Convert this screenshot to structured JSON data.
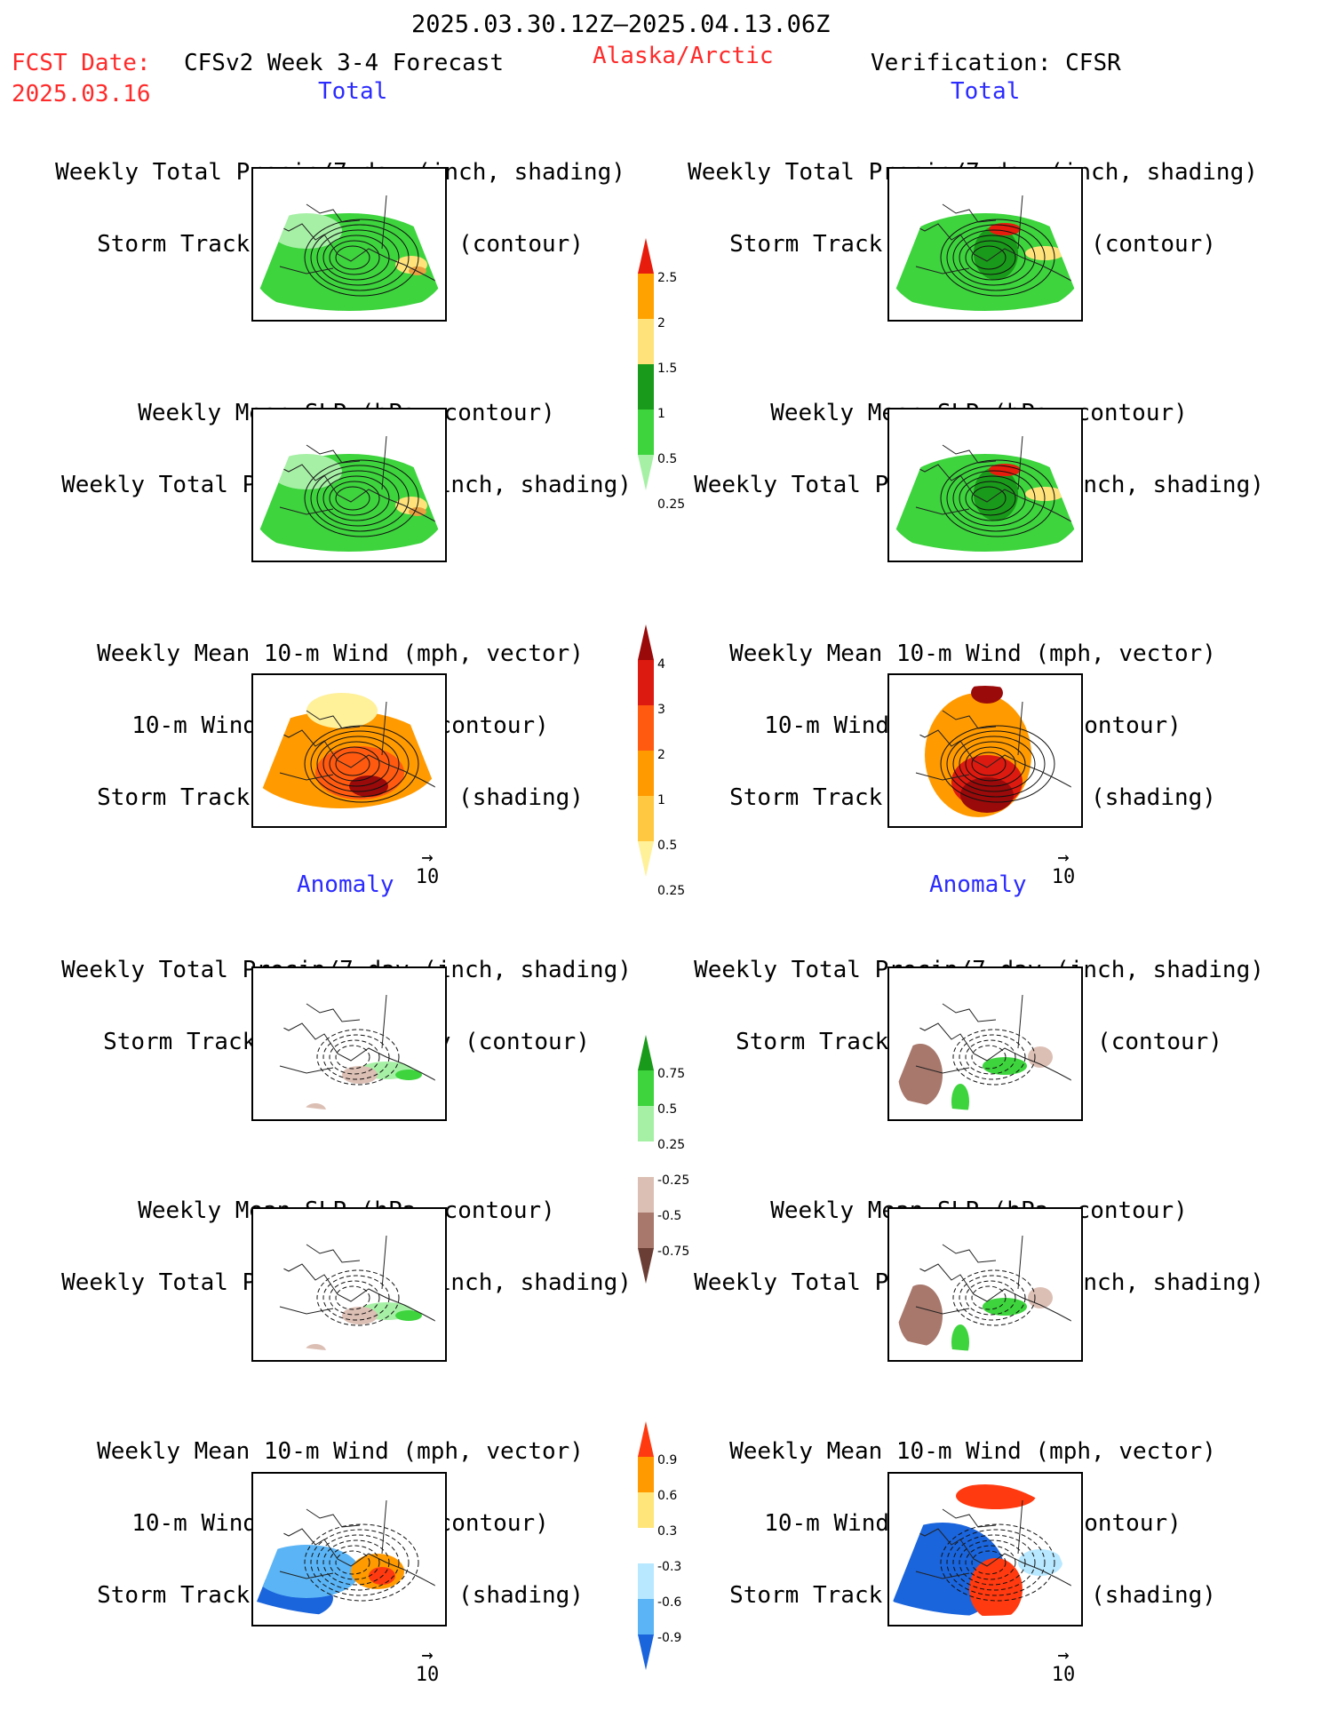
{
  "header": {
    "period": "2025.03.30.12Z–2025.04.13.06Z",
    "fcst_label": "FCST Date:",
    "fcst_date": "2025.03.16",
    "model": "CFSv2 Week 3-4 Forecast",
    "region": "Alaska/Arctic",
    "verification": "Verification: CFSR"
  },
  "sections": {
    "total_left": "Total",
    "total_right": "Total",
    "anomaly_left": "Anomaly",
    "anomaly_right": "Anomaly"
  },
  "titles": {
    "precip_storm": [
      "Weekly Total Precip/7-day (inch, shading)",
      "Storm Track Density/7-day (contour)"
    ],
    "slp_precip": [
      "Weekly Mean SLP (hPa, contour)",
      "Weekly Total Precip/7-day (inch, shading)"
    ],
    "wind": [
      "Weekly Mean 10-m Wind (mph, vector)",
      "10-m Wind Speed (mph, contour)",
      "Storm Track Density/7-day (shading)"
    ]
  },
  "vector_ref": "10",
  "colorbars": {
    "precip_total": {
      "labels": [
        "2.5",
        "2",
        "1.5",
        "1",
        "0.5",
        "0.25"
      ],
      "colors": [
        "#e81c0c",
        "#ffa200",
        "#ffe37a",
        "#1a9a1a",
        "#3dd43d",
        "#a6f0a6"
      ]
    },
    "storm_total": {
      "labels": [
        "4",
        "3",
        "2",
        "1",
        "0.5",
        "0.25"
      ],
      "colors": [
        "#9a0a0a",
        "#dd1a10",
        "#ff5a10",
        "#ff9a00",
        "#ffc840",
        "#fff09a"
      ]
    },
    "precip_anom": {
      "labels": [
        "0.75",
        "0.5",
        "0.25",
        "-0.25",
        "-0.5",
        "-0.75"
      ],
      "colors": [
        "#1a9a1a",
        "#3dd43d",
        "#a6f0a6",
        "#ffffff",
        "#dcbfb4",
        "#a8786c",
        "#6a3e34"
      ]
    },
    "wind_anom": {
      "labels": [
        "0.9",
        "0.6",
        "0.3",
        "-0.3",
        "-0.6",
        "-0.9"
      ],
      "colors": [
        "#ff3a10",
        "#ff9a00",
        "#ffe57a",
        "#ffffff",
        "#b8e8ff",
        "#5ab4f5",
        "#1a64dc"
      ]
    }
  }
}
